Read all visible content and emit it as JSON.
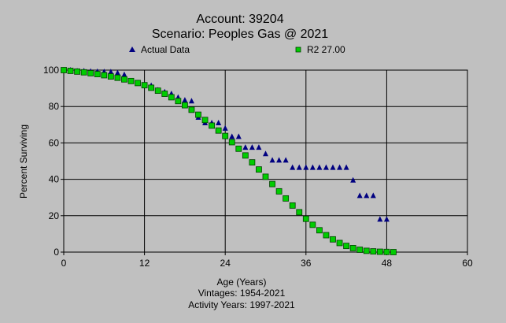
{
  "title_lines": [
    "Account: 39204",
    "Scenario: Peoples Gas @ 2021"
  ],
  "footer_lines": [
    "Vintages: 1954-2021",
    "Activity Years: 1997-2021"
  ],
  "colors": {
    "background": "#c0c0c0",
    "actual_marker": "#000080",
    "curve_fill": "#00cc00",
    "curve_stroke": "#004000",
    "grid": "#000000"
  },
  "chart_data": {
    "type": "scatter",
    "xlabel": "Age (Years)",
    "ylabel": "Percent Surviving",
    "xlim": [
      0,
      60
    ],
    "ylim": [
      0,
      100
    ],
    "xticks": [
      0,
      12,
      24,
      36,
      48,
      60
    ],
    "yticks": [
      0,
      20,
      40,
      60,
      80,
      100
    ],
    "grid": true,
    "legend_placement": "top",
    "series": [
      {
        "name": "Actual Data",
        "marker": "triangle",
        "x": [
          0,
          1,
          2,
          3,
          4,
          5,
          6,
          7,
          8,
          9,
          10,
          11,
          12,
          13,
          14,
          15,
          16,
          17,
          18,
          19,
          20,
          21,
          22,
          23,
          24,
          25,
          26,
          27,
          28,
          29,
          30,
          31,
          32,
          33,
          34,
          35,
          36,
          37,
          38,
          39,
          40,
          41,
          42,
          43,
          44,
          45,
          46,
          47,
          48
        ],
        "y": [
          100,
          100,
          99.5,
          99.5,
          99.3,
          99.2,
          99.1,
          99,
          98.5,
          97.5,
          94,
          93,
          92,
          91.5,
          89,
          88,
          87,
          85,
          83.5,
          83,
          74,
          71,
          71,
          71,
          68,
          63.5,
          63.5,
          57.5,
          57.5,
          57.5,
          54,
          50.5,
          50.5,
          50.5,
          46.5,
          46.5,
          46.5,
          46.5,
          46.5,
          46.5,
          46.5,
          46.5,
          46.5,
          39.5,
          31,
          31,
          31,
          18,
          18
        ]
      },
      {
        "name": "R2 27.00",
        "marker": "square",
        "x": [
          0,
          1,
          2,
          3,
          4,
          5,
          6,
          7,
          8,
          9,
          10,
          11,
          12,
          13,
          14,
          15,
          16,
          17,
          18,
          19,
          20,
          21,
          22,
          23,
          24,
          25,
          26,
          27,
          28,
          29,
          30,
          31,
          32,
          33,
          34,
          35,
          36,
          37,
          38,
          39,
          40,
          41,
          42,
          43,
          44,
          45,
          46,
          47,
          48,
          49
        ],
        "y": [
          100,
          99.6,
          99.2,
          98.8,
          98.3,
          97.8,
          97.2,
          96.5,
          95.8,
          94.9,
          94,
          92.9,
          91.7,
          90.3,
          88.7,
          87,
          85.1,
          83,
          80.7,
          78.2,
          75.5,
          72.6,
          69.5,
          66.8,
          63.8,
          60.4,
          56.8,
          53.1,
          49.3,
          45.4,
          41.4,
          37.4,
          33.4,
          29.5,
          25.6,
          21.9,
          18.3,
          15,
          12,
          9.3,
          7,
          5,
          3.4,
          2.2,
          1.3,
          0.7,
          0.4,
          0.2,
          0.1,
          0
        ]
      }
    ]
  }
}
